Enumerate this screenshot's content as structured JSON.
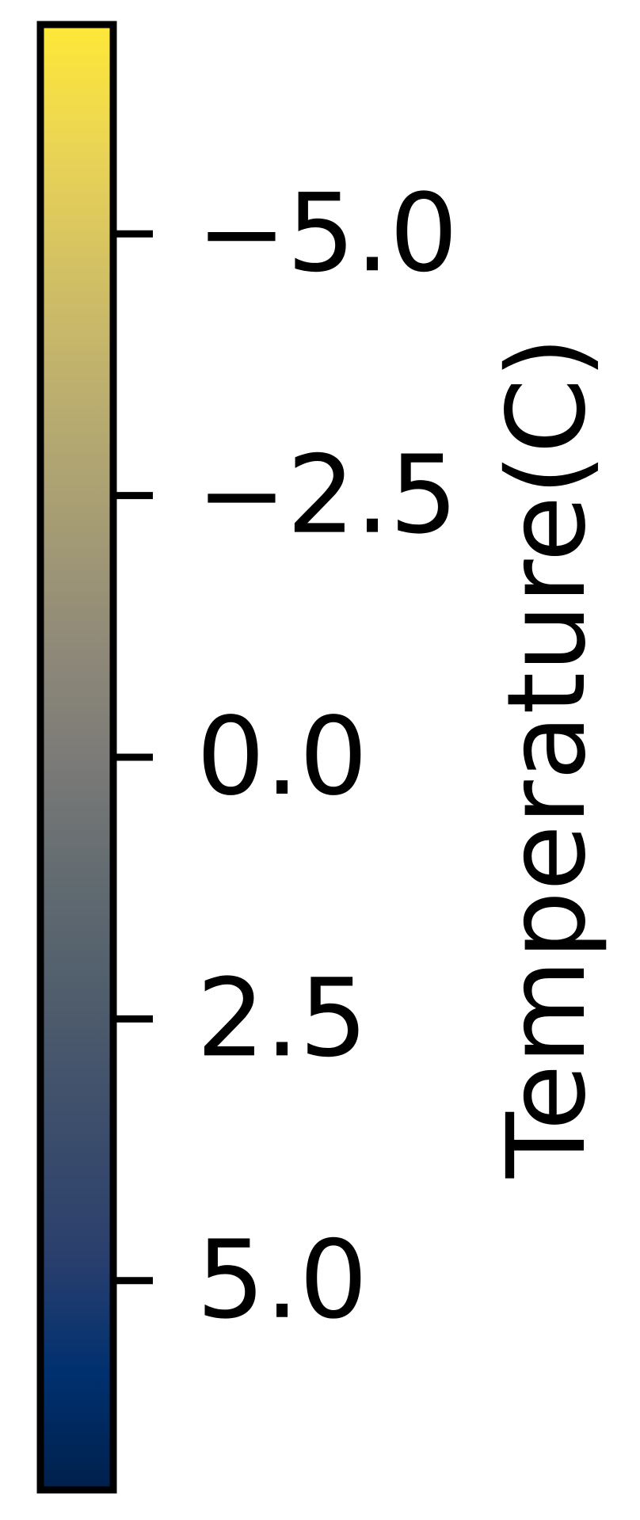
{
  "chart_data": {
    "type": "colorbar",
    "orientation": "vertical",
    "label": "Temperature(C)",
    "colormap": "cividis",
    "inverted": true,
    "vlim": [
      -7,
      7
    ],
    "ticks": [
      {
        "value": -5.0,
        "label": "−5.0"
      },
      {
        "value": -2.5,
        "label": "−2.5"
      },
      {
        "value": 0.0,
        "label": "0.0"
      },
      {
        "value": 2.5,
        "label": "2.5"
      },
      {
        "value": 5.0,
        "label": "5.0"
      }
    ],
    "colors": {
      "low_end": "#00204c",
      "high_end": "#fee838",
      "frame": "#000000"
    }
  }
}
